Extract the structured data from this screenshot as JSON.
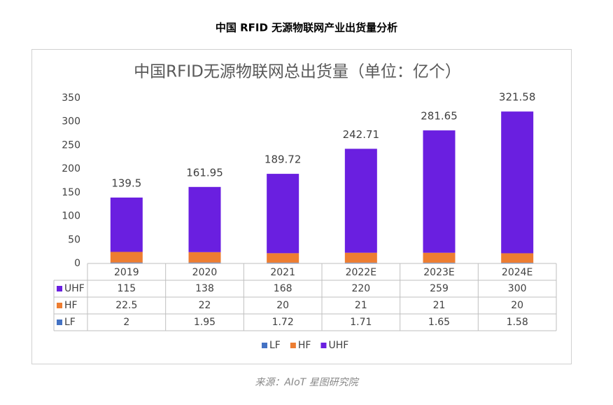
{
  "header": {
    "title": "中国 RFID 无源物联网产业出货量分析"
  },
  "chart_data": {
    "type": "stacked-bar",
    "title": "中国RFID无源物联网总出货量（单位：亿个）",
    "categories": [
      "2019",
      "2020",
      "2021",
      "2022E",
      "2023E",
      "2024E"
    ],
    "series": [
      {
        "name": "LF",
        "color": "#4472c4",
        "values": [
          2,
          1.95,
          1.72,
          1.71,
          1.65,
          1.58
        ]
      },
      {
        "name": "HF",
        "color": "#ed7d31",
        "values": [
          22.5,
          22,
          20,
          21,
          21,
          20
        ]
      },
      {
        "name": "UHF",
        "color": "#6a1fe0",
        "values": [
          115,
          138,
          168,
          220,
          259,
          300
        ]
      }
    ],
    "totals": [
      139.5,
      161.95,
      189.72,
      242.71,
      281.65,
      321.58
    ],
    "ylim": [
      0,
      350
    ],
    "yticks": [
      0,
      50,
      100,
      150,
      200,
      250,
      300,
      350
    ],
    "grid": false
  },
  "footer": {
    "source": "来源：AIoT 星图研究院"
  }
}
